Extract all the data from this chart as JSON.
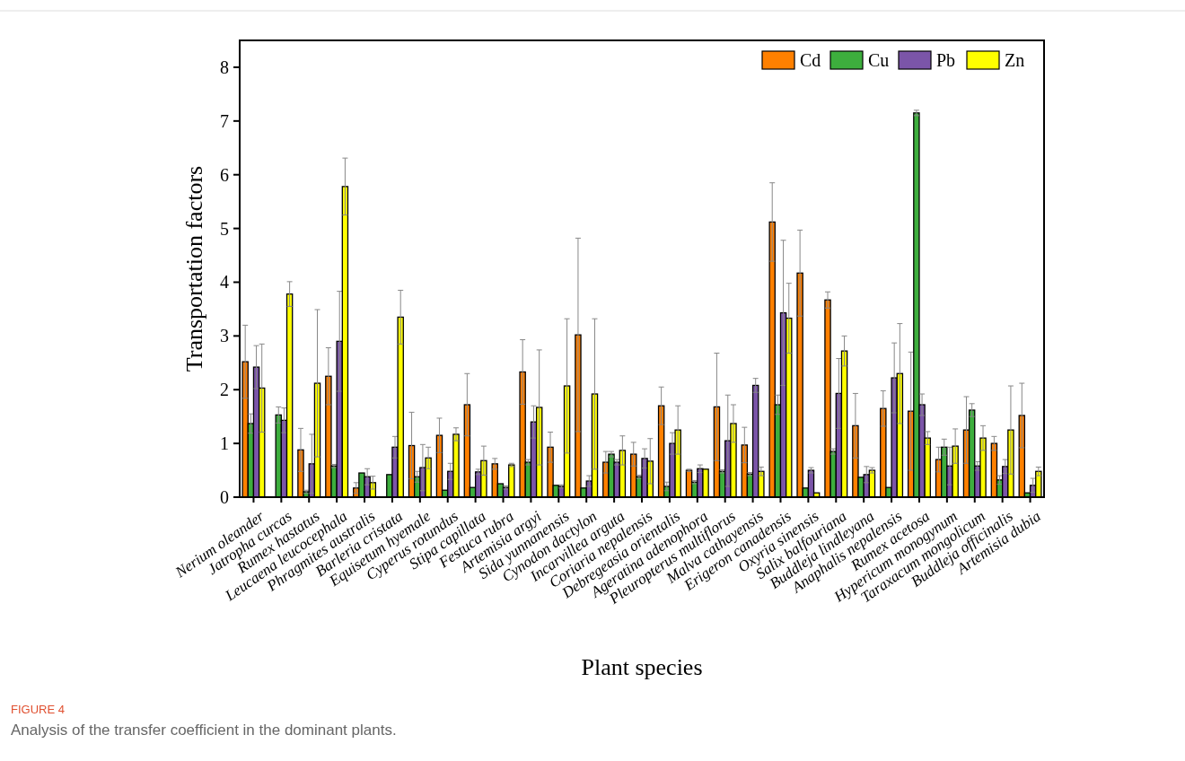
{
  "chart_data": {
    "type": "bar",
    "xlabel": "Plant species",
    "ylabel": "Transportation factors",
    "categories": [
      "Nerium oleander",
      "Jatropha curcas",
      "Rumex hastatus",
      "Leucaena leucocephala",
      "Phragmites australis",
      "Barleria cristata",
      "Equisetum hyemale",
      "Cyperus rotundus",
      "Stipa capillata",
      "Festuca rubra",
      "Artemisia argyi",
      "Sida yunnanensis",
      "Cynodon dactylon",
      "Incarvillea arguta",
      "Coriaria nepalensis",
      "Debregeasia orientalis",
      "Ageratina adenophora",
      "Pleuropterus multiflorus",
      "Malva cathayensis",
      "Erigeron canadensis",
      "Oxyria sinensis",
      "Salix balfouriana",
      "Buddleja lindleyana",
      "Anaphalis nepalensis",
      "Rumex acetosa",
      "Hypericum monogynum",
      "Taraxacum mongolicum",
      "Buddleja officinalis",
      "Artemisia dubia"
    ],
    "series": [
      {
        "name": "Cd",
        "color": "#ff8000",
        "values": [
          2.52,
          null,
          0.88,
          2.25,
          0.17,
          null,
          0.96,
          1.15,
          1.72,
          0.62,
          2.33,
          0.93,
          3.02,
          0.65,
          0.8,
          1.7,
          0.5,
          1.68,
          0.97,
          5.12,
          4.17,
          3.67,
          1.33,
          1.65,
          1.6,
          0.7,
          1.25,
          1.0,
          1.52
        ],
        "errors": [
          0.68,
          null,
          0.4,
          0.53,
          0.1,
          null,
          0.62,
          0.32,
          0.58,
          0.1,
          0.6,
          0.28,
          1.8,
          0.2,
          0.22,
          0.35,
          0.02,
          1.0,
          0.33,
          0.73,
          0.8,
          0.15,
          0.6,
          0.33,
          1.1,
          0.23,
          0.62,
          0.13,
          0.6
        ]
      },
      {
        "name": "Cu",
        "color": "#3dae3d",
        "values": [
          1.37,
          1.53,
          0.1,
          0.58,
          0.45,
          0.42,
          0.38,
          0.13,
          0.18,
          0.25,
          0.65,
          0.22,
          0.17,
          0.8,
          0.38,
          0.2,
          0.28,
          0.48,
          0.43,
          1.72,
          0.17,
          0.85,
          0.37,
          0.18,
          7.15,
          0.93,
          1.62,
          0.32,
          0.08
        ],
        "errors": [
          0.18,
          0.15,
          0.03,
          0.03,
          null,
          null,
          0.1,
          null,
          null,
          null,
          0.05,
          null,
          null,
          0.05,
          0.03,
          0.08,
          0.03,
          0.03,
          0.03,
          0.18,
          null,
          0.05,
          null,
          null,
          0.05,
          0.15,
          0.12,
          0.08,
          null
        ]
      },
      {
        "name": "Pb",
        "color": "#7b55a8",
        "values": [
          2.42,
          1.43,
          0.62,
          2.9,
          0.38,
          0.93,
          0.55,
          0.48,
          0.47,
          0.18,
          1.4,
          0.2,
          0.3,
          0.65,
          0.72,
          1.0,
          0.53,
          1.05,
          2.08,
          3.43,
          0.5,
          1.93,
          0.42,
          2.22,
          1.72,
          0.58,
          0.58,
          0.57,
          0.22
        ],
        "errors": [
          0.4,
          0.23,
          0.55,
          0.93,
          0.15,
          0.2,
          0.43,
          0.15,
          0.05,
          0.03,
          0.3,
          0.03,
          0.1,
          0.05,
          0.18,
          0.2,
          0.07,
          0.85,
          0.13,
          1.35,
          0.05,
          0.65,
          0.15,
          0.65,
          0.2,
          0.35,
          0.08,
          0.13,
          0.13
        ]
      },
      {
        "name": "Zn",
        "color": "#ffff00",
        "values": [
          2.03,
          3.78,
          2.12,
          5.78,
          0.27,
          3.35,
          0.73,
          1.17,
          0.68,
          0.6,
          1.67,
          2.07,
          1.92,
          0.87,
          0.67,
          1.25,
          0.52,
          1.37,
          0.48,
          3.33,
          0.08,
          2.72,
          0.5,
          2.3,
          1.1,
          0.95,
          1.1,
          1.25,
          0.48
        ],
        "errors": [
          0.82,
          0.23,
          1.37,
          0.53,
          0.12,
          0.5,
          0.2,
          0.12,
          0.27,
          0.03,
          1.07,
          1.25,
          1.4,
          0.27,
          0.42,
          0.45,
          null,
          0.35,
          0.08,
          0.65,
          null,
          0.28,
          0.05,
          0.93,
          0.12,
          0.32,
          0.23,
          0.82,
          0.08
        ]
      }
    ],
    "ylim": [
      0,
      8.5
    ],
    "yticks": [
      0,
      1,
      2,
      3,
      4,
      5,
      6,
      7,
      8
    ],
    "grid": false,
    "legend": "top right",
    "annotations": [
      "FIGURE 4",
      "Analysis of the transfer coefficient in the dominant plants."
    ]
  }
}
